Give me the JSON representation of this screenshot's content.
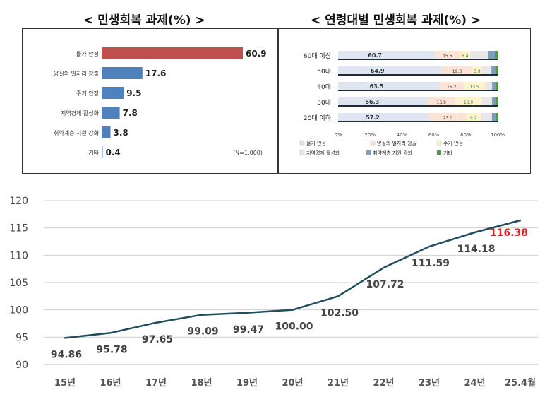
{
  "chart_data": [
    {
      "type": "bar",
      "orientation": "horizontal",
      "title": "< 민생회복 과제(%) >",
      "categories": [
        "물가 안정",
        "양질의 일자리 창출",
        "주거 안정",
        "지역경제 활성화",
        "취약계층 지원 강화",
        "기타"
      ],
      "values": [
        60.9,
        17.6,
        9.5,
        7.8,
        3.8,
        0.4
      ],
      "value_labels": [
        "60.9",
        "17.6",
        "9.5",
        "7.8",
        "3.8",
        "0.4"
      ],
      "highlight_color": "#c0504d",
      "bar_color": "#4f81bd",
      "note": "(N=1,000)"
    },
    {
      "type": "bar",
      "orientation": "horizontal",
      "stacked": "percent",
      "title": "< 연령대별 민생회복 과제(%) >",
      "categories": [
        "60대 이상",
        "50대",
        "40대",
        "30대",
        "20대 이하"
      ],
      "series": [
        {
          "name": "물가 안정",
          "color": "#dfe6f2",
          "values": [
            60.7,
            64.9,
            63.5,
            56.3,
            57.2
          ]
        },
        {
          "name": "양질의 일자리 창출",
          "color": "#fbe3d6",
          "values": [
            15.6,
            19.3,
            15.2,
            16.9,
            23.0
          ]
        },
        {
          "name": "주거 안정",
          "color": "#fdf3cf",
          "values": [
            6.4,
            5.9,
            13.5,
            16.9,
            9.2
          ]
        },
        {
          "name": "지역경제 활성화",
          "color": "#e8e8e8",
          "values": [
            11.5,
            6.0,
            4.3,
            6.4,
            7.0
          ]
        },
        {
          "name": "취약계층 지원 강화",
          "color": "#7f9cc0",
          "values": [
            4.0,
            2.4,
            2.0,
            2.2,
            2.4
          ]
        },
        {
          "name": "기타",
          "color": "#4e9a44",
          "values": [
            1.8,
            1.5,
            1.5,
            1.3,
            1.2
          ]
        }
      ],
      "shown_value_labels": [
        [
          "60.7",
          "15.6",
          "6.4"
        ],
        [
          "64.9",
          "19.3",
          "5.9"
        ],
        [
          "63.5",
          "15.2",
          "13.5"
        ],
        [
          "56.3",
          "16.9",
          "16.9"
        ],
        [
          "57.2",
          "23.0",
          "9.2"
        ]
      ],
      "xticks": [
        "0%",
        "20%",
        "40%",
        "60%",
        "80%",
        "100%"
      ],
      "legend_position": "bottom",
      "legend": [
        "물가 안정",
        "양질의 일자리 창출",
        "주거 안정",
        "지역경제 활성화",
        "취약계층 지원 강화",
        "기타"
      ]
    },
    {
      "type": "line",
      "x": [
        "15년",
        "16년",
        "17년",
        "18년",
        "19년",
        "20년",
        "21년",
        "22년",
        "23년",
        "24년",
        "25.4월"
      ],
      "values": [
        94.86,
        95.78,
        97.65,
        99.09,
        99.47,
        100.0,
        102.5,
        107.72,
        111.59,
        114.18,
        116.38
      ],
      "value_labels": [
        "94.86",
        "95.78",
        "97.65",
        "99.09",
        "99.47",
        "100.00",
        "102.50",
        "107.72",
        "111.59",
        "114.18",
        "116.38"
      ],
      "yticks": [
        "90",
        "95",
        "100",
        "105",
        "110",
        "115",
        "120"
      ],
      "ylim": [
        90,
        120
      ],
      "grid": true,
      "line_color": "#1f4e5f",
      "last_label_color": "#d62728"
    }
  ]
}
